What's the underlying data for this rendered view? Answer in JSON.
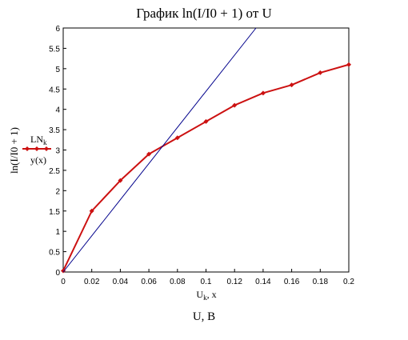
{
  "page_title": "График ln(I/I0 + 1) от U",
  "footer_label": "U, B",
  "chart_data": {
    "type": "line",
    "xlabel_base": "U",
    "xlabel_sub": "k",
    "xlabel_tail": ", x",
    "ylabel": "ln(I/I0 + 1)",
    "xlim": [
      0,
      0.2
    ],
    "ylim": [
      0,
      6
    ],
    "x_ticks": [
      0,
      0.02,
      0.04,
      0.06,
      0.08,
      0.1,
      0.12,
      0.14,
      0.16,
      0.18,
      0.2
    ],
    "y_ticks": [
      0,
      0.5,
      1,
      1.5,
      2,
      2.5,
      3,
      3.5,
      4,
      4.5,
      5,
      5.5,
      6
    ],
    "x_tick_labels": [
      "0",
      "0.02",
      "0.04",
      "0.06",
      "0.08",
      "0.1",
      "0.12",
      "0.14",
      "0.16",
      "0.18",
      "0.2"
    ],
    "y_tick_labels": [
      "0",
      "0.5",
      "1",
      "1.5",
      "2",
      "2.5",
      "3",
      "3.5",
      "4",
      "4.5",
      "5",
      "5.5",
      "6"
    ],
    "grid": false,
    "legend_position": "left",
    "series": [
      {
        "name": "LN",
        "name_sub": "k",
        "color": "#cc1111",
        "marker": "diamond",
        "x": [
          0,
          0.02,
          0.04,
          0.06,
          0.08,
          0.1,
          0.12,
          0.14,
          0.16,
          0.18,
          0.2
        ],
        "y": [
          0.03,
          1.5,
          2.25,
          2.9,
          3.3,
          3.7,
          4.1,
          4.4,
          4.6,
          4.9,
          5.1
        ]
      },
      {
        "name": "y(x)",
        "name_sub": "",
        "color": "#00008b",
        "marker": "none",
        "x": [
          0,
          0.135
        ],
        "y": [
          0,
          6
        ]
      }
    ]
  }
}
